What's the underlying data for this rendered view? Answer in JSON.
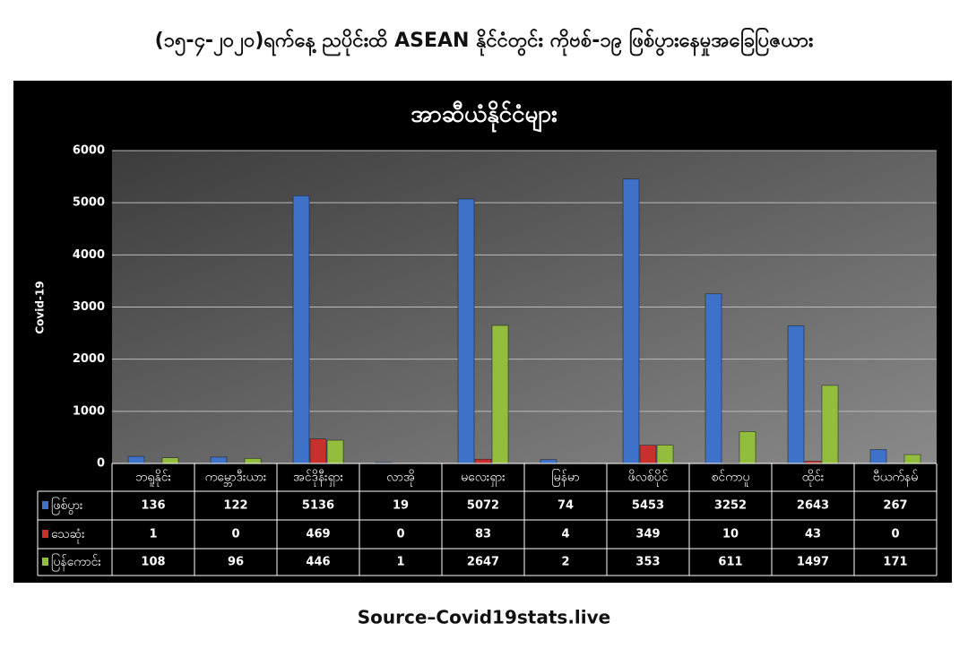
{
  "chart_data": {
    "type": "bar",
    "title": "(၁၅-၄-၂၀၂၀)ရက်နေ့ ညပိုင်းထိ ASEAN နိုင်ငံတွင်း ကိုဗစ်-၁၉ ဖြစ်ပွားနေမှုအခြေပြဇယား",
    "subtitle": "အာဆီယံနိုင်ငံများ",
    "y_label": "Covid-19",
    "source": "Source–Covid19stats.live",
    "categories": [
      "ဘရူနိုင်း",
      "ကမ္ဘောဒီးယား",
      "အင်ဒိုနီးရှား",
      "လာအို",
      "မလေးရှား",
      "မြန်မာ",
      "ဖိလစ်ပိုင်",
      "စင်ကာပူ",
      "ထိုင်း",
      "ဗီယက်နမ်"
    ],
    "series": [
      {
        "name": "ဖြစ်ပွား",
        "color": "#3d72c8",
        "values": [
          136,
          122,
          5136,
          19,
          5072,
          74,
          5453,
          3252,
          2643,
          267
        ]
      },
      {
        "name": "သေဆုံး",
        "color": "#c8302e",
        "values": [
          1,
          0,
          469,
          0,
          83,
          4,
          349,
          10,
          43,
          0
        ]
      },
      {
        "name": "ပြန်ကောင်း",
        "color": "#93bd3c",
        "values": [
          108,
          96,
          446,
          1,
          2647,
          2,
          353,
          611,
          1497,
          171
        ]
      }
    ],
    "ylim": [
      0,
      6000
    ],
    "yticks": [
      0,
      1000,
      2000,
      3000,
      4000,
      5000,
      6000
    ],
    "grid": true
  }
}
